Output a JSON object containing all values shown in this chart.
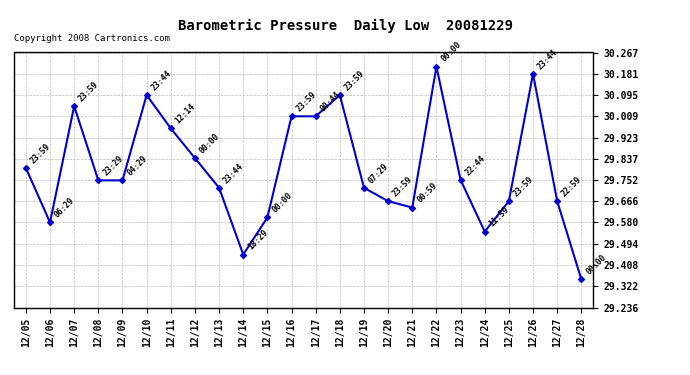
{
  "title": "Barometric Pressure  Daily Low  20081229",
  "copyright": "Copyright 2008 Cartronics.com",
  "background_color": "#ffffff",
  "line_color": "#0000cc",
  "marker_color": "#0000cc",
  "grid_color": "#bbbbbb",
  "x_labels": [
    "12/05",
    "12/06",
    "12/07",
    "12/08",
    "12/09",
    "12/10",
    "12/11",
    "12/12",
    "12/13",
    "12/14",
    "12/15",
    "12/16",
    "12/17",
    "12/18",
    "12/19",
    "12/20",
    "12/21",
    "12/22",
    "12/23",
    "12/24",
    "12/25",
    "12/26",
    "12/27",
    "12/28"
  ],
  "y_values": [
    29.8,
    29.58,
    30.05,
    29.75,
    29.75,
    30.095,
    29.96,
    29.84,
    29.72,
    29.45,
    29.6,
    30.009,
    30.009,
    30.095,
    29.72,
    29.666,
    29.64,
    30.21,
    29.752,
    29.543,
    29.666,
    30.181,
    29.666,
    29.35
  ],
  "point_labels": [
    "23:59",
    "06:29",
    "23:59",
    "23:29",
    "04:29",
    "23:44",
    "12:14",
    "00:00",
    "23:44",
    "18:29",
    "00:00",
    "23:59",
    "00:44",
    "23:59",
    "07:29",
    "23:59",
    "00:59",
    "00:00",
    "22:44",
    "11:59",
    "23:59",
    "23:44",
    "22:59",
    "00:00"
  ],
  "ylim_min": 29.236,
  "ylim_max": 30.267,
  "yticks": [
    29.236,
    29.322,
    29.408,
    29.494,
    29.58,
    29.666,
    29.752,
    29.837,
    29.923,
    30.009,
    30.095,
    30.181,
    30.267
  ]
}
